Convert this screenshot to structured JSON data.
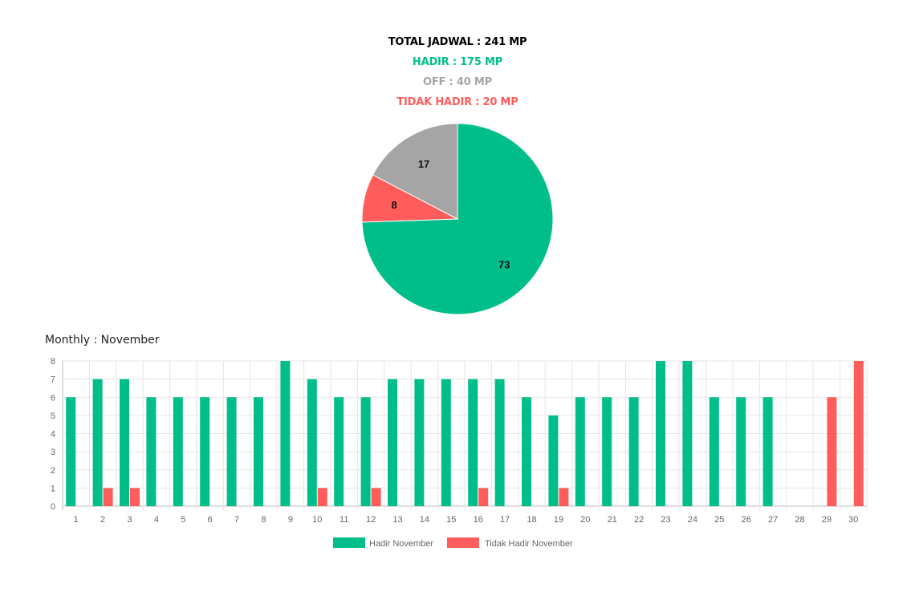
{
  "summary": {
    "total": "TOTAL JADWAL : 241 MP",
    "hadir": "HADIR : 175 MP",
    "off": "OFF : 40 MP",
    "tidak_hadir": "TIDAK HADIR : 20 MP"
  },
  "colors": {
    "total": "#000000",
    "hadir": "#00BE8A",
    "off": "#A5A5A5",
    "tidak_hadir": "#FF5C5C"
  },
  "monthly_title": "Monthly : November",
  "chart_data": [
    {
      "type": "pie",
      "slices": [
        {
          "label": "73",
          "value": 73,
          "color": "#00BE8A"
        },
        {
          "label": "8",
          "value": 8,
          "color": "#FF5C5C"
        },
        {
          "label": "17",
          "value": 17,
          "color": "#A5A5A5"
        }
      ]
    },
    {
      "type": "bar",
      "categories": [
        "1",
        "2",
        "3",
        "4",
        "5",
        "6",
        "7",
        "8",
        "9",
        "10",
        "11",
        "12",
        "13",
        "14",
        "15",
        "16",
        "17",
        "18",
        "19",
        "20",
        "21",
        "22",
        "23",
        "24",
        "25",
        "26",
        "27",
        "28",
        "29",
        "30"
      ],
      "series": [
        {
          "name": "Hadir November",
          "color": "#00BE8A",
          "values": [
            6,
            7,
            7,
            6,
            6,
            6,
            6,
            6,
            8,
            7,
            6,
            6,
            7,
            7,
            7,
            7,
            7,
            6,
            5,
            6,
            6,
            6,
            8,
            8,
            6,
            6,
            6,
            0,
            0,
            0
          ]
        },
        {
          "name": "Tidak Hadir November",
          "color": "#FF5C5C",
          "values": [
            0,
            1,
            1,
            0,
            0,
            0,
            0,
            0,
            0,
            1,
            0,
            1,
            0,
            0,
            0,
            1,
            0,
            0,
            1,
            0,
            0,
            0,
            0,
            0,
            0,
            0,
            0,
            0,
            6,
            8
          ]
        }
      ],
      "yticks": [
        "0",
        "1",
        "2",
        "3",
        "4",
        "5",
        "6",
        "7",
        "8"
      ],
      "ylim": [
        0,
        8
      ],
      "grid": true,
      "legend": "bottom-center"
    }
  ]
}
